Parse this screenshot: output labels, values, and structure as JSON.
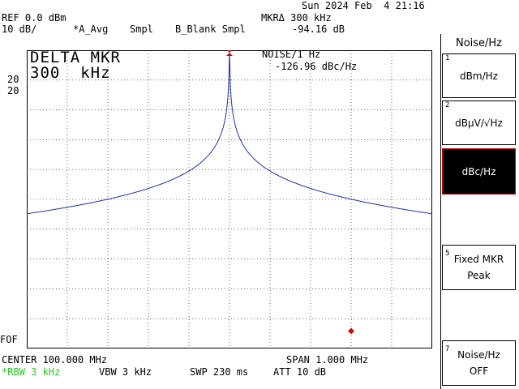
{
  "datetime": "Sun 2024 Feb  4 21:16",
  "header": {
    "ref_level": "REF 0.0 dBm",
    "scale": "10 dB/",
    "trace_a": "*A_Avg",
    "trace_a_mode": "Smpl",
    "trace_b": "B_Blank Smpl",
    "marker_label": "MKRΔ 300 kHz",
    "marker_value": "-94.16 dB"
  },
  "delta_marker": {
    "line1": "DELTA MKR",
    "line2": "300  kHz"
  },
  "noise_readout": {
    "label": "NOISE/1 Hz",
    "value": "-126.96 dBc/Hz"
  },
  "left_labels": {
    "ref_a": "20",
    "ref_b": "20",
    "bottom": "FOF"
  },
  "footer": {
    "center": "CENTER 100.000 MHz",
    "span": "SPAN 1.000 MHz",
    "rbw": "*RBW 3 kHz",
    "vbw": "VBW 3 kHz",
    "swp": "SWP 230 ms",
    "att": "ATT 10 dB"
  },
  "softkeys": {
    "title": "Noise/Hz",
    "items": [
      {
        "num": "1",
        "label": "dBm/Hz",
        "active": false
      },
      {
        "num": "2",
        "label": "dBµV/√Hz",
        "active": false
      },
      {
        "num": "",
        "label": "dBc/Hz",
        "active": true
      },
      {
        "num": "5",
        "label": "Fixed MKR\nPeak",
        "active": false
      },
      {
        "num": "7",
        "label": "Noise/Hz\nOFF",
        "active": false
      }
    ]
  },
  "colors": {
    "trace": "#1f2fb8",
    "marker": "#d01010",
    "rbw_text": "#22cc22",
    "grid": "#000000"
  },
  "trace": {
    "center_frequency_mhz": 100.0,
    "span_mhz": 1.0,
    "reference_dbm": 0.0,
    "db_per_division": 10,
    "peak_frequency_mhz": 100.0,
    "peak_level_db": 0.0,
    "noise_floor_db": -94.0,
    "delta_marker_frequency_mhz": 100.3,
    "delta_marker_level_db": -94.16
  }
}
